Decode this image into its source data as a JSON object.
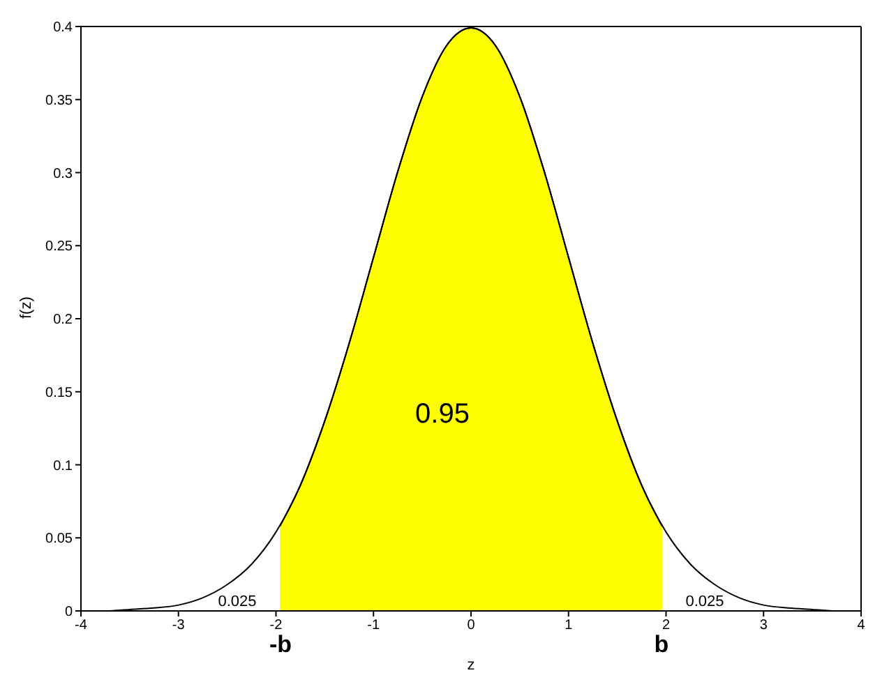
{
  "chart_data": {
    "type": "line",
    "xlabel": "z",
    "ylabel": "f(z)",
    "xlim": [
      -4,
      4
    ],
    "xticks": [
      -4,
      -3,
      -2,
      -1,
      0,
      1,
      2,
      3,
      4
    ],
    "ylim": [
      0,
      0.4
    ],
    "yticks": [
      0,
      0.05,
      0.1,
      0.15,
      0.2,
      0.25,
      0.3,
      0.35,
      0.4
    ],
    "marker": "none",
    "line_style": "solid",
    "series": [
      {
        "type": "area",
        "color": "#ffff00",
        "x": [
          -1.96,
          -1.75,
          -1.5,
          -1.25,
          -1,
          -0.75,
          -0.5,
          -0.25,
          0,
          0.25,
          0.5,
          0.75,
          1,
          1.25,
          1.5,
          1.75,
          1.96
        ],
        "values": [
          0.058,
          0.086,
          0.13,
          0.183,
          0.242,
          0.301,
          0.352,
          0.387,
          0.399,
          0.387,
          0.352,
          0.301,
          0.242,
          0.183,
          0.13,
          0.086,
          0.058
        ]
      },
      {
        "color": "#000000",
        "x": [
          -4,
          -3.75,
          -3.5,
          -3.25,
          -3,
          -2.75,
          -2.5,
          -2.25,
          -2,
          -1.75,
          -1.5,
          -1.25,
          -1,
          -0.75,
          -0.5,
          -0.25,
          0,
          0.25,
          0.5,
          0.75,
          1,
          1.25,
          1.5,
          1.75,
          2,
          2.25,
          2.5,
          2.75,
          3,
          3.25,
          3.5,
          3.75,
          4
        ],
        "values": [
          0.0,
          0.0,
          0.001,
          0.002,
          0.004,
          0.009,
          0.018,
          0.032,
          0.054,
          0.086,
          0.13,
          0.183,
          0.242,
          0.301,
          0.352,
          0.387,
          0.399,
          0.387,
          0.352,
          0.301,
          0.242,
          0.183,
          0.13,
          0.086,
          0.054,
          0.032,
          0.018,
          0.009,
          0.004,
          0.002,
          0.001,
          0.0,
          0.0
        ]
      }
    ],
    "annotations": [
      "0.95",
      "0.025",
      "0.025",
      "-b",
      "b"
    ]
  }
}
